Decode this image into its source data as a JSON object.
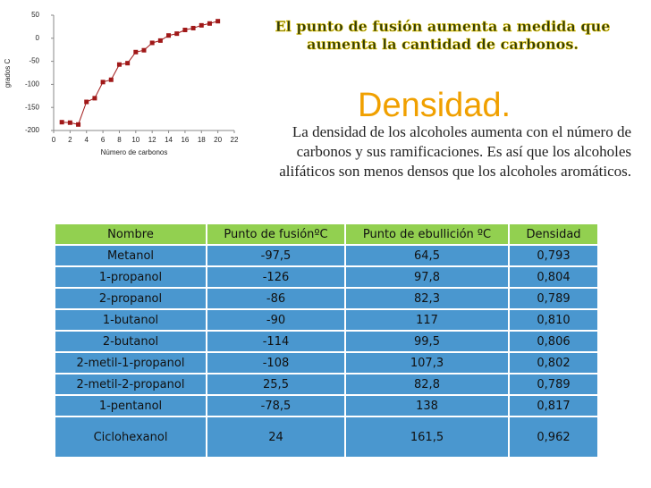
{
  "chart_data": {
    "type": "line",
    "xlabel": "Número de carbonos",
    "ylabel": "grados C",
    "x": [
      1,
      2,
      3,
      4,
      5,
      6,
      7,
      8,
      9,
      10,
      11,
      12,
      13,
      14,
      15,
      16,
      17,
      18,
      19,
      20
    ],
    "series": [
      {
        "color": "#a01818",
        "values": [
          -182,
          -183,
          -187,
          -138,
          -130,
          -95,
          -90,
          -57,
          -54,
          -30,
          -26,
          -10,
          -5,
          6,
          10,
          18,
          22,
          28,
          32,
          37
        ]
      }
    ],
    "xlim": [
      0,
      22
    ],
    "xticks": [
      0,
      2,
      4,
      6,
      8,
      10,
      12,
      14,
      16,
      18,
      20,
      22
    ],
    "ylim": [
      -200,
      50
    ],
    "yticks": [
      -200,
      -150,
      -100,
      -50,
      0,
      50
    ]
  },
  "headline": "El punto de fusión aumenta a medida que aumenta la cantidad de carbonos.",
  "heading": "Densidad.",
  "paragraph": "La densidad de los alcoholes aumenta con el número de carbonos y sus ramificaciones. Es así que los alcoholes alifáticos son menos densos que los alcoholes aromáticos.",
  "table": {
    "header": [
      "Nombre",
      "Punto de fusiónºC",
      "Punto de ebullición ºC",
      "Densidad"
    ],
    "rows": [
      [
        "Metanol",
        "-97,5",
        "64,5",
        "0,793"
      ],
      [
        "1-propanol",
        "-126",
        "97,8",
        "0,804"
      ],
      [
        "2-propanol",
        "-86",
        "82,3",
        "0,789"
      ],
      [
        "1-butanol",
        "-90",
        "117",
        "0,810"
      ],
      [
        "2-butanol",
        "-114",
        "99,5",
        "0,806"
      ],
      [
        "2-metil-1-propanol",
        "-108",
        "107,3",
        "0,802"
      ],
      [
        "2-metil-2-propanol",
        "25,5",
        "82,8",
        "0,789"
      ],
      [
        "1-pentanol",
        "-78,5",
        "138",
        "0,817"
      ],
      [
        "Ciclohexanol",
        "24",
        "161,5",
        "0,962"
      ]
    ]
  }
}
